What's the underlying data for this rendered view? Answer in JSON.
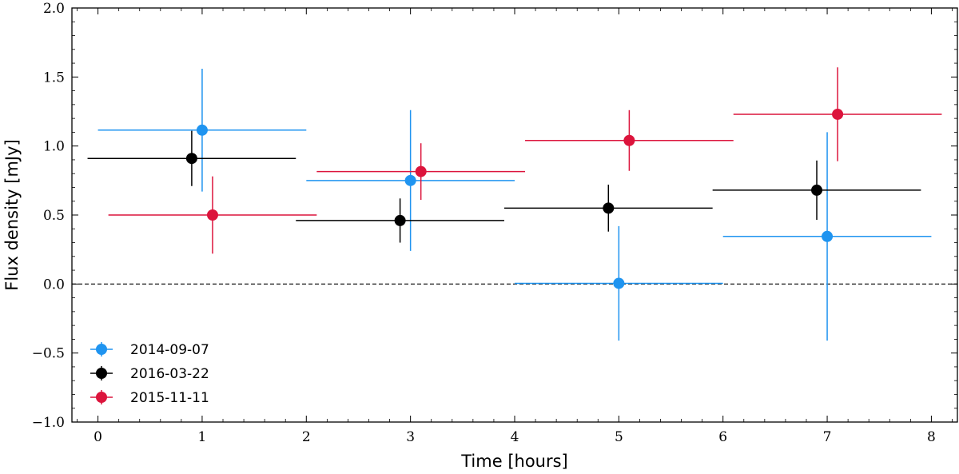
{
  "chart_data": {
    "type": "scatter",
    "title": "",
    "xlabel": "Time [hours]",
    "ylabel": "Flux density [mJy]",
    "xlim": [
      -0.25,
      8.25
    ],
    "ylim": [
      -1.0,
      2.0
    ],
    "x_ticks": [
      0,
      1,
      2,
      3,
      4,
      5,
      6,
      7,
      8
    ],
    "x_tick_labels": [
      "0",
      "1",
      "2",
      "3",
      "4",
      "5",
      "6",
      "7",
      "8"
    ],
    "y_ticks": [
      -1.0,
      -0.5,
      0.0,
      0.5,
      1.0,
      1.5,
      2.0
    ],
    "y_tick_labels": [
      "−1.0",
      "−0.5",
      "0.0",
      "0.5",
      "1.0",
      "1.5",
      "2.0"
    ],
    "reference_line": {
      "y": 0.0,
      "style": "dashed"
    },
    "grid": false,
    "legend_position": "lower-left",
    "series": [
      {
        "name": "2014-09-07",
        "color": "#1f94f0",
        "points": [
          {
            "x": 1.0,
            "y": 1.115,
            "xerr": 1.0,
            "yerr_low": 0.445,
            "yerr_high": 0.445
          },
          {
            "x": 3.0,
            "y": 0.75,
            "xerr": 1.0,
            "yerr_low": 0.51,
            "yerr_high": 0.51
          },
          {
            "x": 5.0,
            "y": 0.005,
            "xerr": 1.0,
            "yerr_low": 0.415,
            "yerr_high": 0.415
          },
          {
            "x": 7.0,
            "y": 0.345,
            "xerr": 1.0,
            "yerr_low": 0.755,
            "yerr_high": 0.755
          }
        ]
      },
      {
        "name": "2016-03-22",
        "color": "#000000",
        "points": [
          {
            "x": 0.9,
            "y": 0.91,
            "xerr": 1.0,
            "yerr_low": 0.2,
            "yerr_high": 0.2
          },
          {
            "x": 2.9,
            "y": 0.46,
            "xerr": 1.0,
            "yerr_low": 0.16,
            "yerr_high": 0.16
          },
          {
            "x": 4.9,
            "y": 0.55,
            "xerr": 1.0,
            "yerr_low": 0.17,
            "yerr_high": 0.17
          },
          {
            "x": 6.9,
            "y": 0.68,
            "xerr": 1.0,
            "yerr_low": 0.215,
            "yerr_high": 0.215
          }
        ]
      },
      {
        "name": "2015-11-11",
        "color": "#dc143c",
        "points": [
          {
            "x": 1.1,
            "y": 0.5,
            "xerr": 1.0,
            "yerr_low": 0.28,
            "yerr_high": 0.28
          },
          {
            "x": 3.1,
            "y": 0.815,
            "xerr": 1.0,
            "yerr_low": 0.205,
            "yerr_high": 0.205
          },
          {
            "x": 5.1,
            "y": 1.04,
            "xerr": 1.0,
            "yerr_low": 0.22,
            "yerr_high": 0.22
          },
          {
            "x": 7.1,
            "y": 1.23,
            "xerr": 1.0,
            "yerr_low": 0.34,
            "yerr_high": 0.34
          }
        ]
      }
    ]
  }
}
